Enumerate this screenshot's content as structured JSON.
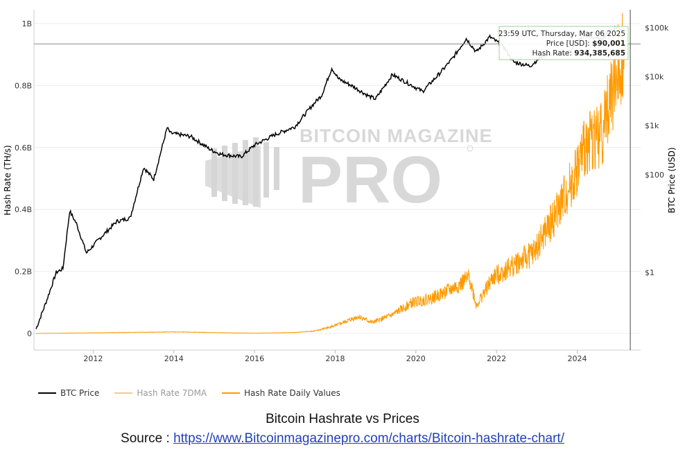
{
  "chart_data": {
    "type": "line",
    "x_axis": {
      "ticks": [
        "2012",
        "2014",
        "2016",
        "2018",
        "2020",
        "2022",
        "2024"
      ],
      "range": [
        "2010-08",
        "2025-03"
      ]
    },
    "y_axis_left": {
      "label": "Hash Rate (TH/s)",
      "ticks": [
        "0",
        "0.2B",
        "0.4B",
        "0.6B",
        "0.8B",
        "1B"
      ],
      "range": [
        0,
        1000000000
      ]
    },
    "y_axis_right": {
      "label": "BTC Price (USD)",
      "scale": "log",
      "ticks": [
        "$1",
        "$100",
        "$1k",
        "$10k",
        "$100k"
      ]
    },
    "legend": {
      "position": "bottom-left"
    },
    "grid": true,
    "colors": {
      "btc_price": "#000000",
      "hash_7dma": "#f8c98c",
      "hash_daily": "#ff9a00"
    },
    "series": [
      {
        "name": "BTC Price",
        "axis": "right",
        "points": [
          [
            "2010-08",
            0.07
          ],
          [
            "2010-11",
            0.25
          ],
          [
            "2011-02",
            1.0
          ],
          [
            "2011-04",
            1.2
          ],
          [
            "2011-06",
            18
          ],
          [
            "2011-08",
            10
          ],
          [
            "2011-11",
            2.5
          ],
          [
            "2012-03",
            5
          ],
          [
            "2012-08",
            11
          ],
          [
            "2012-12",
            13
          ],
          [
            "2013-04",
            140
          ],
          [
            "2013-07",
            80
          ],
          [
            "2013-11",
            900
          ],
          [
            "2013-12",
            700
          ],
          [
            "2014-06",
            600
          ],
          [
            "2014-12",
            320
          ],
          [
            "2015-03",
            260
          ],
          [
            "2015-09",
            230
          ],
          [
            "2016-01",
            400
          ],
          [
            "2016-07",
            650
          ],
          [
            "2017-01",
            950
          ],
          [
            "2017-06",
            2500
          ],
          [
            "2017-09",
            4200
          ],
          [
            "2017-12",
            15000
          ],
          [
            "2018-02",
            9000
          ],
          [
            "2018-06",
            6500
          ],
          [
            "2018-11",
            4000
          ],
          [
            "2019-01",
            3500
          ],
          [
            "2019-06",
            11000
          ],
          [
            "2019-09",
            8500
          ],
          [
            "2020-03",
            5000
          ],
          [
            "2020-08",
            11500
          ],
          [
            "2020-12",
            24000
          ],
          [
            "2021-04",
            60000
          ],
          [
            "2021-07",
            32000
          ],
          [
            "2021-11",
            65000
          ],
          [
            "2022-03",
            42000
          ],
          [
            "2022-06",
            20000
          ],
          [
            "2022-11",
            16500
          ],
          [
            "2023-03",
            28000
          ],
          [
            "2023-10",
            30000
          ],
          [
            "2024-03",
            70000
          ],
          [
            "2024-08",
            58000
          ],
          [
            "2024-12",
            100000
          ],
          [
            "2025-01",
            102000
          ],
          [
            "2025-03",
            90001
          ]
        ]
      },
      {
        "name": "Hash Rate 7DMA",
        "axis": "left",
        "visible": false,
        "points": []
      },
      {
        "name": "Hash Rate Daily Values",
        "axis": "left",
        "points": [
          [
            "2010-08",
            0
          ],
          [
            "2014-01",
            5000000
          ],
          [
            "2016-01",
            800000
          ],
          [
            "2017-01",
            3000000
          ],
          [
            "2017-07",
            8000000
          ],
          [
            "2018-01",
            25000000
          ],
          [
            "2018-08",
            55000000
          ],
          [
            "2018-12",
            35000000
          ],
          [
            "2019-06",
            60000000
          ],
          [
            "2019-12",
            100000000
          ],
          [
            "2020-06",
            115000000
          ],
          [
            "2021-01",
            150000000
          ],
          [
            "2021-05",
            180000000
          ],
          [
            "2021-07",
            90000000
          ],
          [
            "2021-12",
            180000000
          ],
          [
            "2022-06",
            220000000
          ],
          [
            "2022-12",
            260000000
          ],
          [
            "2023-06",
            370000000
          ],
          [
            "2023-12",
            500000000
          ],
          [
            "2024-04",
            620000000
          ],
          [
            "2024-08",
            640000000
          ],
          [
            "2024-12",
            800000000
          ],
          [
            "2025-03",
            934385685
          ]
        ]
      }
    ]
  },
  "tooltip": {
    "date": "23:59 UTC, Thursday, Mar 06 2025",
    "price_label": "Price [USD]:",
    "price_value": "$90,001",
    "hash_label": "Hash Rate:",
    "hash_value": "934,385,685"
  },
  "watermark": {
    "line1": "BITCOIN MAGAZINE",
    "line2": "PRO"
  },
  "legend_items": [
    {
      "label": "BTC Price",
      "color": "#000000",
      "active": true
    },
    {
      "label": "Hash Rate 7DMA",
      "color": "#f8c98c",
      "active": false
    },
    {
      "label": "Hash Rate Daily Values",
      "color": "#ff9a00",
      "active": true
    }
  ],
  "caption": {
    "title": "Bitcoin Hashrate vs Prices",
    "source_prefix": "Source : ",
    "source_link": "https://www.Bitcoinmagazinepro.com/charts/Bitcoin-hashrate-chart/"
  }
}
